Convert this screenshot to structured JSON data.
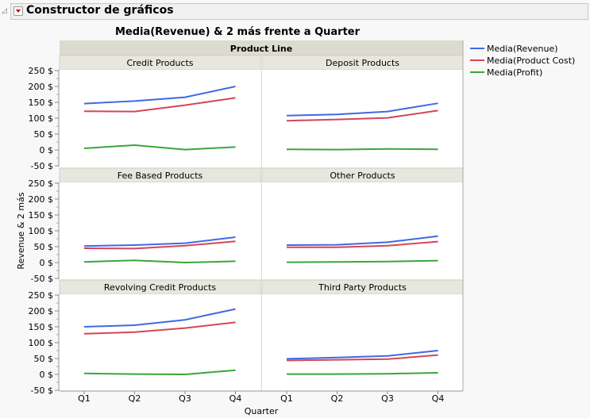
{
  "header": {
    "title": "Constructor de gráficos"
  },
  "chart_data": {
    "type": "line",
    "title": "Media(Revenue) & 2 más frente a Quarter",
    "group_label": "Product Line",
    "xlabel": "Quarter",
    "ylabel": "Revenue & 2 más",
    "categories": [
      "Q1",
      "Q2",
      "Q3",
      "Q4"
    ],
    "ylim": [
      -50,
      250
    ],
    "yticks": [
      "250 $",
      "200 $",
      "150 $",
      "100 $",
      "50 $",
      "0 $",
      "-50 $"
    ],
    "legend_placement": "right",
    "legend": [
      {
        "name": "Media(Revenue)",
        "color": "#4169e1"
      },
      {
        "name": "Media(Product Cost)",
        "color": "#d4455a"
      },
      {
        "name": "Media(Profit)",
        "color": "#3aa63a"
      }
    ],
    "panels": [
      {
        "name": "Credit Products",
        "series": [
          [
            146,
            154,
            166,
            200
          ],
          [
            122,
            121,
            141,
            164
          ],
          [
            5,
            15,
            1,
            9
          ]
        ]
      },
      {
        "name": "Deposit Products",
        "series": [
          [
            108,
            112,
            121,
            147
          ],
          [
            92,
            96,
            101,
            124
          ],
          [
            2,
            1,
            3,
            2
          ]
        ]
      },
      {
        "name": "Fee Based Products",
        "series": [
          [
            52,
            55,
            61,
            80
          ],
          [
            45,
            44,
            53,
            67
          ],
          [
            2,
            7,
            0,
            4
          ]
        ]
      },
      {
        "name": "Other Products",
        "series": [
          [
            55,
            56,
            64,
            83
          ],
          [
            48,
            48,
            53,
            66
          ],
          [
            1,
            2,
            3,
            6
          ]
        ]
      },
      {
        "name": "Revolving Credit Products",
        "series": [
          [
            150,
            155,
            172,
            206
          ],
          [
            128,
            133,
            146,
            164
          ],
          [
            3,
            1,
            0,
            13
          ]
        ]
      },
      {
        "name": "Third Party Products",
        "series": [
          [
            49,
            53,
            58,
            75
          ],
          [
            44,
            46,
            48,
            61
          ],
          [
            1,
            1,
            2,
            5
          ]
        ]
      }
    ]
  }
}
